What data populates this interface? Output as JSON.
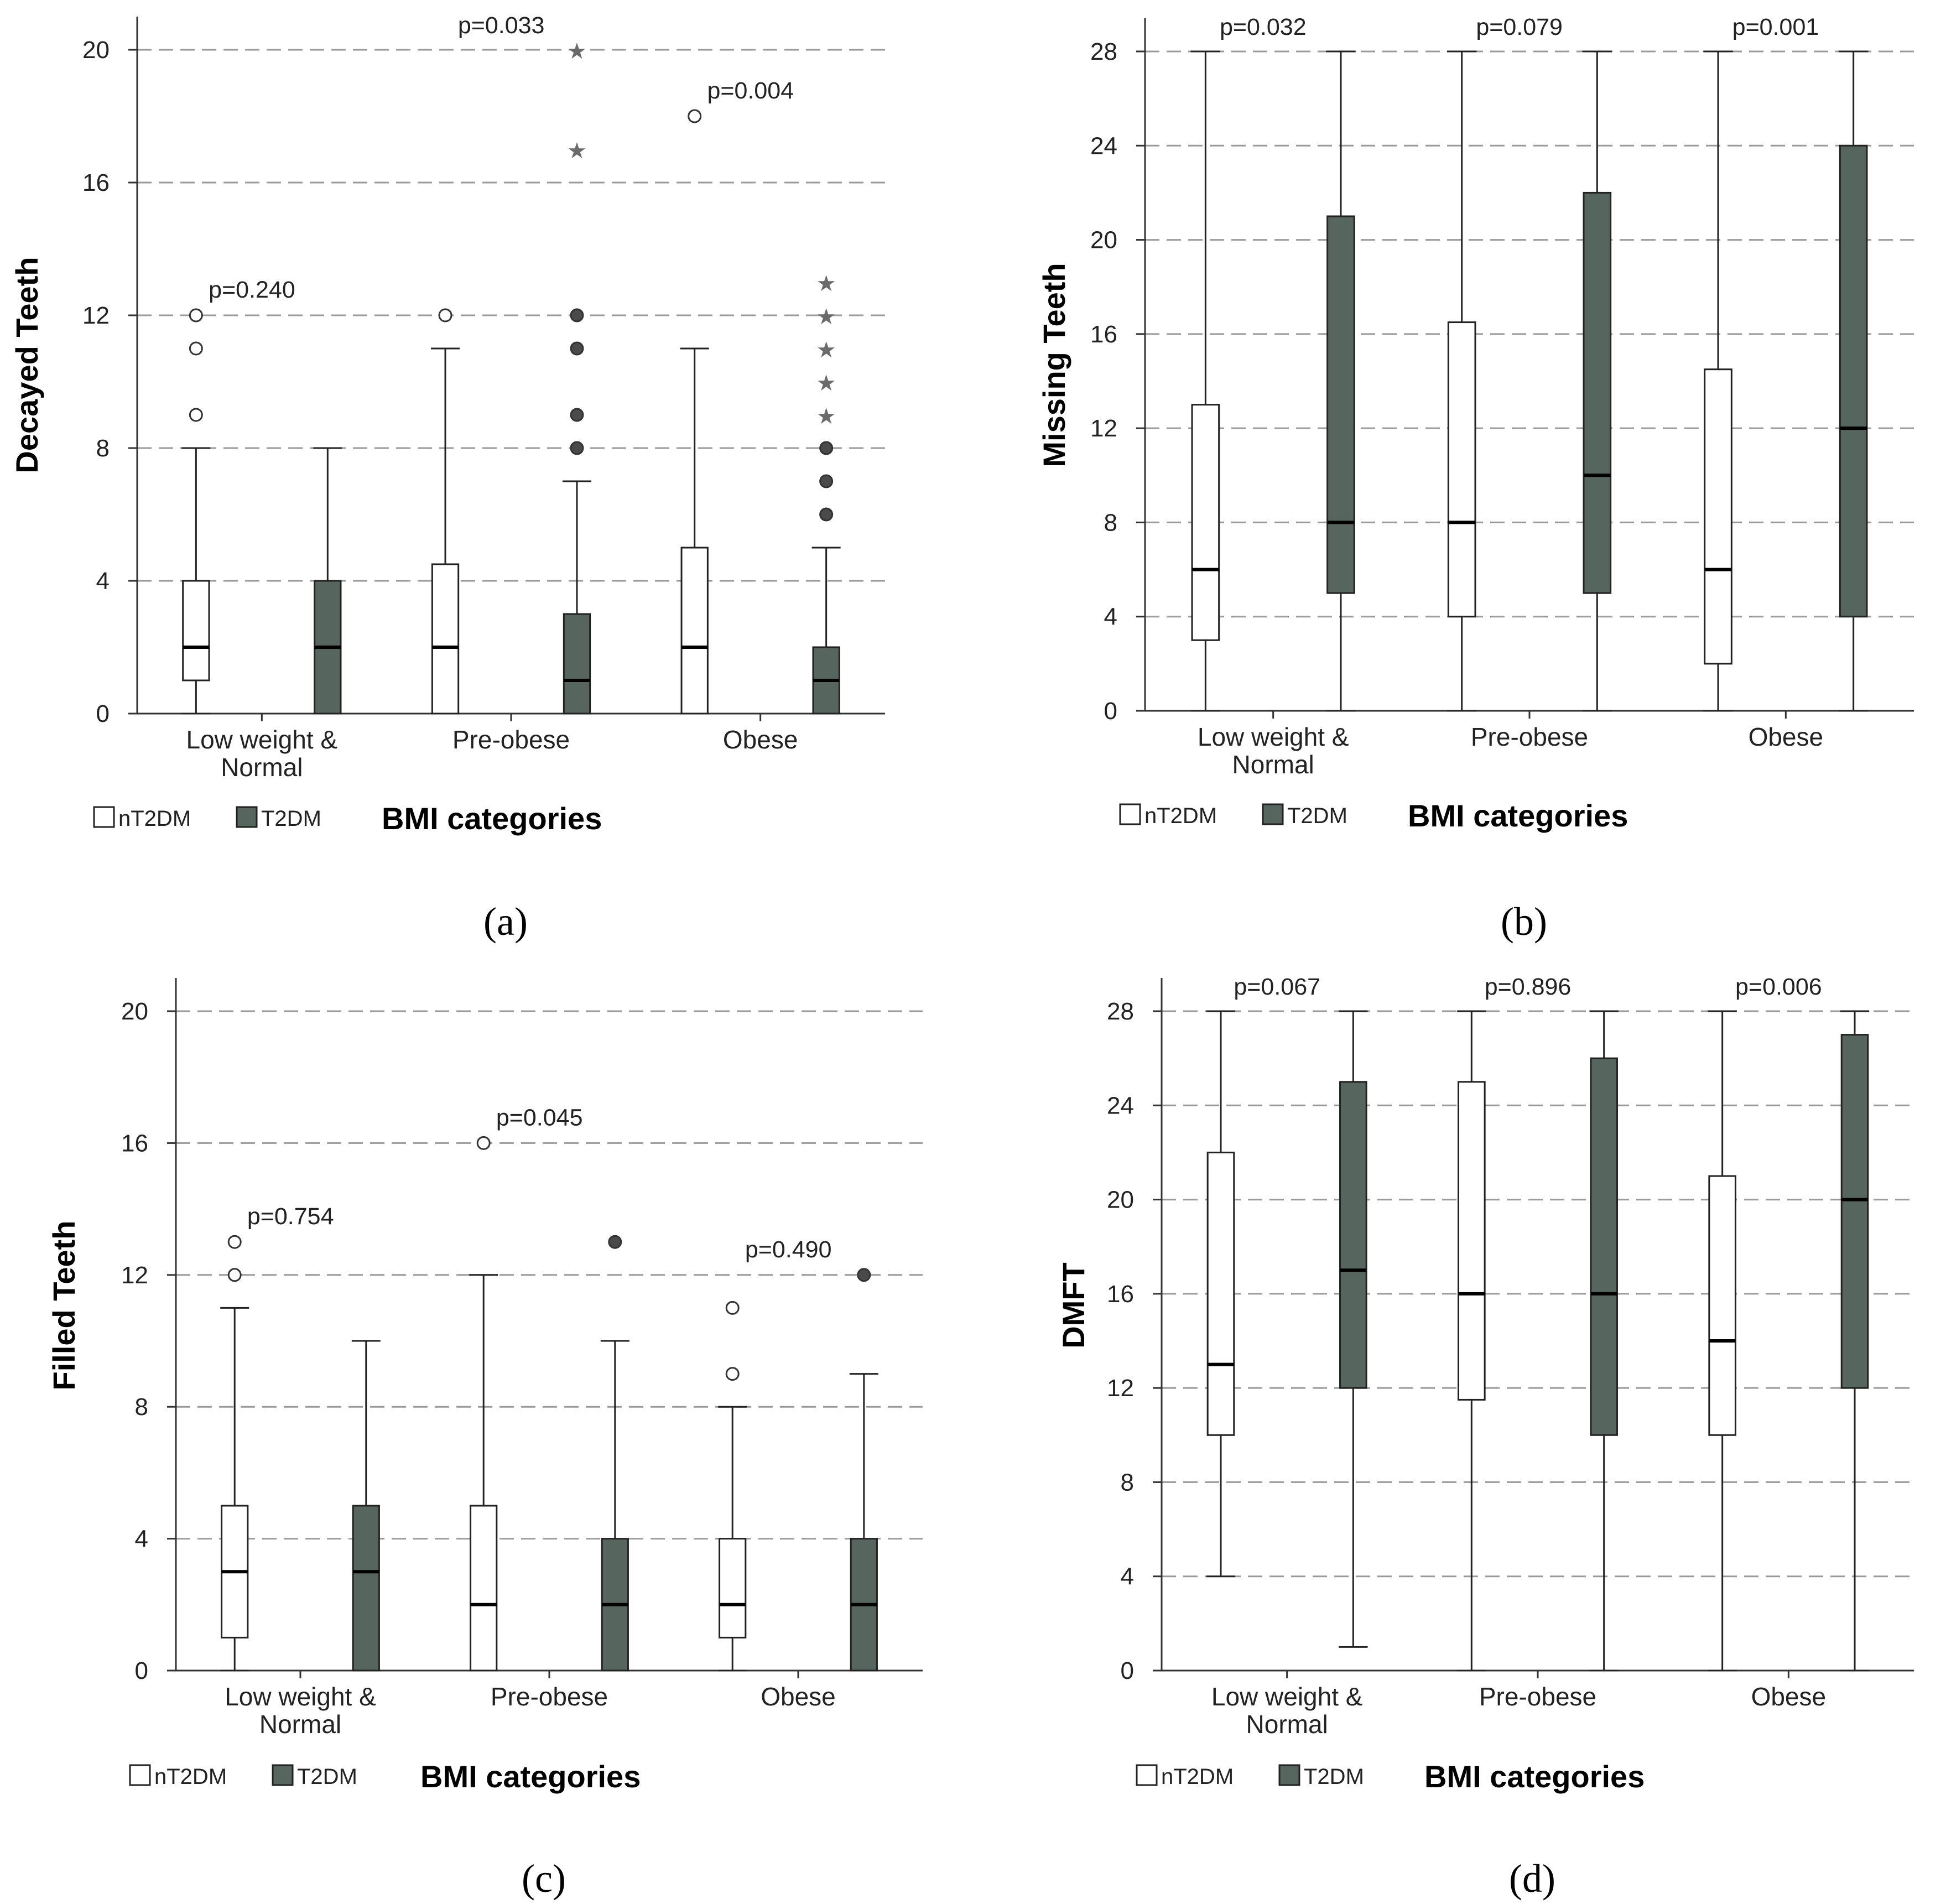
{
  "legend": {
    "ntdm": "nT2DM",
    "tdm": "T2DM",
    "ntdm_color": "#ffffff",
    "tdm_color": "#56655e"
  },
  "chart_data": [
    {
      "type": "box",
      "panel_label": "(a)",
      "ylabel": "Decayed Teeth",
      "xlabel": "BMI categories",
      "ylim": [
        0,
        20
      ],
      "yticks": [
        0,
        4,
        8,
        12,
        16,
        20
      ],
      "grid": true,
      "categories": [
        {
          "label": "Low weight &",
          "label2": "Normal",
          "pvalue": "p=0.240"
        },
        {
          "label": "Pre-obese",
          "label2": "",
          "pvalue": "p=0.033"
        },
        {
          "label": "Obese",
          "label2": "",
          "pvalue": "p=0.004"
        }
      ],
      "series": [
        {
          "name": "nT2DM",
          "boxes": [
            {
              "min": 0,
              "q1": 1,
              "median": 2,
              "q3": 4,
              "max": 8,
              "outliers": [
                9,
                11,
                12
              ],
              "extremes": []
            },
            {
              "min": 0,
              "q1": 0,
              "median": 2,
              "q3": 4.5,
              "max": 11,
              "outliers": [
                12
              ],
              "extremes": []
            },
            {
              "min": 0,
              "q1": 0,
              "median": 2,
              "q3": 5,
              "max": 11,
              "outliers": [
                18
              ],
              "extremes": []
            }
          ]
        },
        {
          "name": "T2DM",
          "boxes": [
            {
              "min": 0,
              "q1": 0,
              "median": 2,
              "q3": 4,
              "max": 8,
              "outliers": [],
              "extremes": []
            },
            {
              "min": 0,
              "q1": 0,
              "median": 1,
              "q3": 3,
              "max": 7,
              "outliers": [
                8,
                9,
                11,
                12
              ],
              "extremes": [
                17,
                20
              ]
            },
            {
              "min": 0,
              "q1": 0,
              "median": 1,
              "q3": 2,
              "max": 5,
              "outliers": [
                6,
                7,
                8
              ],
              "extremes": [
                9,
                10,
                11,
                12,
                13
              ]
            }
          ]
        }
      ]
    },
    {
      "type": "box",
      "panel_label": "(b)",
      "ylabel": "Missing Teeth",
      "xlabel": "BMI categories",
      "ylim": [
        0,
        28
      ],
      "yticks": [
        0,
        4,
        8,
        12,
        16,
        20,
        24,
        28
      ],
      "grid": true,
      "categories": [
        {
          "label": "Low weight &",
          "label2": "Normal",
          "pvalue": "p=0.032"
        },
        {
          "label": "Pre-obese",
          "label2": "",
          "pvalue": "p=0.079"
        },
        {
          "label": "Obese",
          "label2": "",
          "pvalue": "p=0.001"
        }
      ],
      "series": [
        {
          "name": "nT2DM",
          "boxes": [
            {
              "min": 0,
              "q1": 3,
              "median": 6,
              "q3": 13,
              "max": 28,
              "outliers": [],
              "extremes": []
            },
            {
              "min": 0,
              "q1": 4,
              "median": 8,
              "q3": 16.5,
              "max": 28,
              "outliers": [],
              "extremes": []
            },
            {
              "min": 0,
              "q1": 2,
              "median": 6,
              "q3": 14.5,
              "max": 28,
              "outliers": [],
              "extremes": []
            }
          ]
        },
        {
          "name": "T2DM",
          "boxes": [
            {
              "min": 0,
              "q1": 5,
              "median": 8,
              "q3": 21,
              "max": 28,
              "outliers": [],
              "extremes": []
            },
            {
              "min": 0,
              "q1": 5,
              "median": 10,
              "q3": 22,
              "max": 28,
              "outliers": [],
              "extremes": []
            },
            {
              "min": 0,
              "q1": 4,
              "median": 12,
              "q3": 24,
              "max": 28,
              "outliers": [],
              "extremes": []
            }
          ]
        }
      ]
    },
    {
      "type": "box",
      "panel_label": "(c)",
      "ylabel": "Filled Teeth",
      "xlabel": "BMI categories",
      "ylim": [
        0,
        20
      ],
      "yticks": [
        0,
        4,
        8,
        12,
        16,
        20
      ],
      "grid": true,
      "categories": [
        {
          "label": "Low weight &",
          "label2": "Normal",
          "pvalue": "p=0.754"
        },
        {
          "label": "Pre-obese",
          "label2": "",
          "pvalue": "p=0.045"
        },
        {
          "label": "Obese",
          "label2": "",
          "pvalue": "p=0.490"
        }
      ],
      "series": [
        {
          "name": "nT2DM",
          "boxes": [
            {
              "min": 0,
              "q1": 1,
              "median": 3,
              "q3": 5,
              "max": 11,
              "outliers": [
                12,
                13
              ],
              "extremes": []
            },
            {
              "min": 0,
              "q1": 0,
              "median": 2,
              "q3": 5,
              "max": 12,
              "outliers": [
                16
              ],
              "extremes": []
            },
            {
              "min": 0,
              "q1": 1,
              "median": 2,
              "q3": 4,
              "max": 8,
              "outliers": [
                9,
                11
              ],
              "extremes": []
            }
          ]
        },
        {
          "name": "T2DM",
          "boxes": [
            {
              "min": 0,
              "q1": 0,
              "median": 3,
              "q3": 5,
              "max": 10,
              "outliers": [],
              "extremes": []
            },
            {
              "min": 0,
              "q1": 0,
              "median": 2,
              "q3": 4,
              "max": 10,
              "outliers": [
                13
              ],
              "extremes": []
            },
            {
              "min": 0,
              "q1": 0,
              "median": 2,
              "q3": 4,
              "max": 9,
              "outliers": [
                12
              ],
              "extremes": []
            }
          ]
        }
      ]
    },
    {
      "type": "box",
      "panel_label": "(d)",
      "ylabel": "DMFT",
      "xlabel": "BMI categories",
      "ylim": [
        0,
        28
      ],
      "yticks": [
        0,
        4,
        8,
        12,
        16,
        20,
        24,
        28
      ],
      "grid": true,
      "categories": [
        {
          "label": "Low weight &",
          "label2": "Normal",
          "pvalue": "p=0.067"
        },
        {
          "label": "Pre-obese",
          "label2": "",
          "pvalue": "p=0.896"
        },
        {
          "label": "Obese",
          "label2": "",
          "pvalue": "p=0.006"
        }
      ],
      "series": [
        {
          "name": "nT2DM",
          "boxes": [
            {
              "min": 4,
              "q1": 10,
              "median": 13,
              "q3": 22,
              "max": 28,
              "outliers": [],
              "extremes": []
            },
            {
              "min": 0,
              "q1": 11.5,
              "median": 16,
              "q3": 25,
              "max": 28,
              "outliers": [],
              "extremes": []
            },
            {
              "min": 0,
              "q1": 10,
              "median": 14,
              "q3": 21,
              "max": 28,
              "outliers": [],
              "extremes": []
            }
          ]
        },
        {
          "name": "T2DM",
          "boxes": [
            {
              "min": 1,
              "q1": 12,
              "median": 17,
              "q3": 25,
              "max": 28,
              "outliers": [],
              "extremes": []
            },
            {
              "min": 0,
              "q1": 10,
              "median": 16,
              "q3": 26,
              "max": 28,
              "outliers": [],
              "extremes": []
            },
            {
              "min": 0,
              "q1": 12,
              "median": 20,
              "q3": 27,
              "max": 28,
              "outliers": [],
              "extremes": []
            }
          ]
        }
      ]
    }
  ]
}
